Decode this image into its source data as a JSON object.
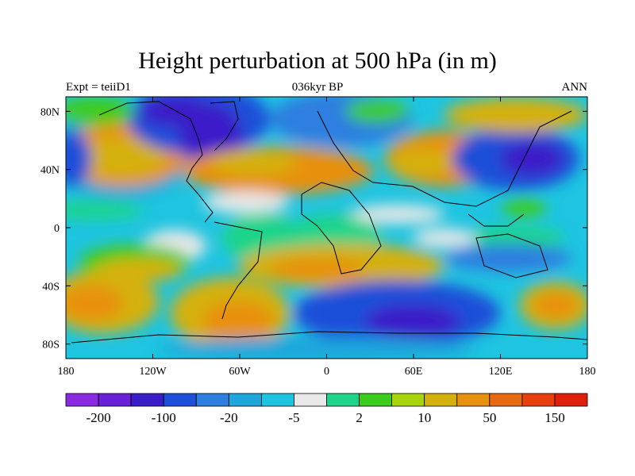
{
  "title": "Height perturbation at 500 hPa (in m)",
  "left_header": "Expt = teiiD1",
  "center_header": "036kyr BP",
  "right_header": "ANN",
  "axes": {
    "x_ticks": [
      {
        "value": -180,
        "label": "180"
      },
      {
        "value": -120,
        "label": "120W"
      },
      {
        "value": -60,
        "label": "60W"
      },
      {
        "value": 0,
        "label": "0"
      },
      {
        "value": 60,
        "label": "60E"
      },
      {
        "value": 120,
        "label": "120E"
      },
      {
        "value": 180,
        "label": "180"
      }
    ],
    "y_ticks": [
      {
        "value": 80,
        "label": "80N"
      },
      {
        "value": 40,
        "label": "40N"
      },
      {
        "value": 0,
        "label": "0"
      },
      {
        "value": -40,
        "label": "40S"
      },
      {
        "value": -80,
        "label": "80S"
      }
    ],
    "lon_range": [
      -180,
      180
    ],
    "lat_range": [
      -90,
      90
    ]
  },
  "colorbar": {
    "colors": [
      "#8a2be2",
      "#6a1fd8",
      "#3a1fc8",
      "#1e4fd8",
      "#2f7fe0",
      "#1fa6dc",
      "#1ec4e0",
      "#e8e8e8",
      "#1fd48a",
      "#3ccc1e",
      "#a8d40c",
      "#d4b00c",
      "#e89010",
      "#e86a10",
      "#e8400c",
      "#e01e0c"
    ],
    "labels": [
      {
        "boundary": 1,
        "text": "-200"
      },
      {
        "boundary": 3,
        "text": "-100"
      },
      {
        "boundary": 5,
        "text": "-20"
      },
      {
        "boundary": 7,
        "text": "-5"
      },
      {
        "boundary": 9,
        "text": "2"
      },
      {
        "boundary": 11,
        "text": "10"
      },
      {
        "boundary": 13,
        "text": "50"
      },
      {
        "boundary": 15,
        "text": "150"
      }
    ]
  },
  "chart_data": {
    "type": "heatmap",
    "title": "Height perturbation at 500 hPa (in m)",
    "subtitle": "036kyr BP",
    "xlim": [
      -180,
      180
    ],
    "ylim": [
      -90,
      90
    ],
    "x_ticks": [
      "180",
      "120W",
      "60W",
      "0",
      "60E",
      "120E",
      "180"
    ],
    "y_ticks": [
      "80N",
      "40N",
      "0",
      "40S",
      "80S"
    ],
    "colorbar_labels": [
      "-200",
      "-100",
      "-20",
      "-5",
      "2",
      "10",
      "50",
      "150"
    ],
    "regions": [
      {
        "lon": -150,
        "lat": 45,
        "value": 50
      },
      {
        "lon": -90,
        "lat": 65,
        "value": -100
      },
      {
        "lon": -60,
        "lat": 35,
        "value": 50
      },
      {
        "lon": 10,
        "lat": 70,
        "value": -20
      },
      {
        "lon": 40,
        "lat": 40,
        "value": 50
      },
      {
        "lon": 120,
        "lat": 45,
        "value": -100
      },
      {
        "lon": 160,
        "lat": 70,
        "value": 50
      },
      {
        "lon": -150,
        "lat": 20,
        "value": -20
      },
      {
        "lon": 30,
        "lat": -10,
        "value": 10
      },
      {
        "lon": -150,
        "lat": -50,
        "value": 50
      },
      {
        "lon": -70,
        "lat": -60,
        "value": 50
      },
      {
        "lon": 60,
        "lat": -55,
        "value": -100
      },
      {
        "lon": 160,
        "lat": -50,
        "value": 50
      },
      {
        "lon": 100,
        "lat": -30,
        "value": -20
      }
    ]
  }
}
